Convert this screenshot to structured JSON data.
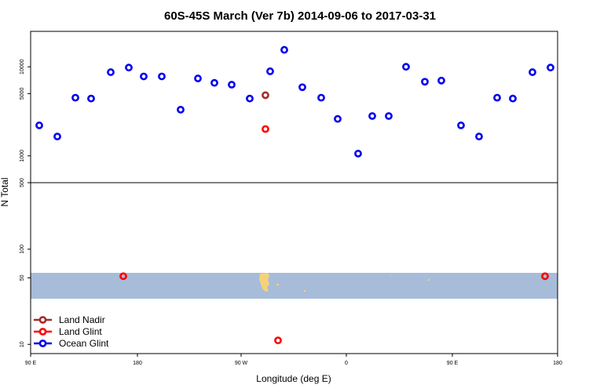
{
  "chart_data": {
    "type": "scatter",
    "title": "60S-45S March (Ver 7b)   2014-09-06 to 2017-03-31",
    "xlabel": "Longitude (deg E)",
    "ylabel": "N Total",
    "x_tick_labels": [
      "90 E",
      "180",
      "90 W",
      "0",
      "90 E",
      "180"
    ],
    "lower_y_tick_labels": [
      "10",
      "50",
      "100",
      "500"
    ],
    "upper_y_tick_labels": [
      "1000",
      "5000",
      "10000"
    ],
    "lower_panel_ylim": [
      8,
      500
    ],
    "upper_panel_ylim": [
      500,
      25000
    ],
    "y_scale": "log",
    "grid": false,
    "legend_position": "bottom-left",
    "map_band_lat_range": [
      -60,
      -45
    ],
    "series": [
      {
        "name": "Land Nadir",
        "color": "#a52a2a",
        "points": [
          {
            "x": -65,
            "y": 4800
          }
        ]
      },
      {
        "name": "Land Glint",
        "color": "#ff0000",
        "points": [
          {
            "x": -165,
            "y": 52
          },
          {
            "x": -65,
            "y": 2000
          },
          {
            "x": -55,
            "y": 11
          },
          {
            "x": 175,
            "y": 52
          }
        ]
      },
      {
        "name": "Ocean Glint",
        "color": "#0000ee",
        "points": [
          {
            "x": 97.5,
            "y": 2200
          },
          {
            "x": 112.5,
            "y": 1650
          },
          {
            "x": 127.5,
            "y": 4500
          },
          {
            "x": 142.5,
            "y": 4400
          },
          {
            "x": 157.5,
            "y": 8700
          },
          {
            "x": 172.5,
            "y": 9800
          },
          {
            "x": -172.5,
            "y": 7800
          },
          {
            "x": -157.5,
            "y": 7800
          },
          {
            "x": -142.5,
            "y": 3300
          },
          {
            "x": -127.5,
            "y": 7400
          },
          {
            "x": -112.5,
            "y": 6600
          },
          {
            "x": -97.5,
            "y": 6300
          },
          {
            "x": -82.5,
            "y": 4400
          },
          {
            "x": -67.5,
            "y": 8900
          },
          {
            "x": -52.5,
            "y": 15500
          },
          {
            "x": -37.5,
            "y": 5900
          },
          {
            "x": -22.5,
            "y": 4500
          },
          {
            "x": -7.5,
            "y": 2600
          },
          {
            "x": 7.5,
            "y": 1060
          },
          {
            "x": 22.5,
            "y": 2800
          },
          {
            "x": 37.5,
            "y": 2800
          },
          {
            "x": 52.5,
            "y": 10000
          },
          {
            "x": 67.5,
            "y": 6800
          },
          {
            "x": 82.5,
            "y": 7000
          },
          {
            "x": 97.5,
            "y": 2200
          },
          {
            "x": 112.5,
            "y": 1650
          },
          {
            "x": 127.5,
            "y": 4500
          },
          {
            "x": 142.5,
            "y": 4400
          },
          {
            "x": 157.5,
            "y": 8700
          },
          {
            "x": 172.5,
            "y": 9800
          }
        ]
      }
    ]
  },
  "colors": {
    "map_band": "#a7bcd9",
    "land": "#f5d27a"
  }
}
